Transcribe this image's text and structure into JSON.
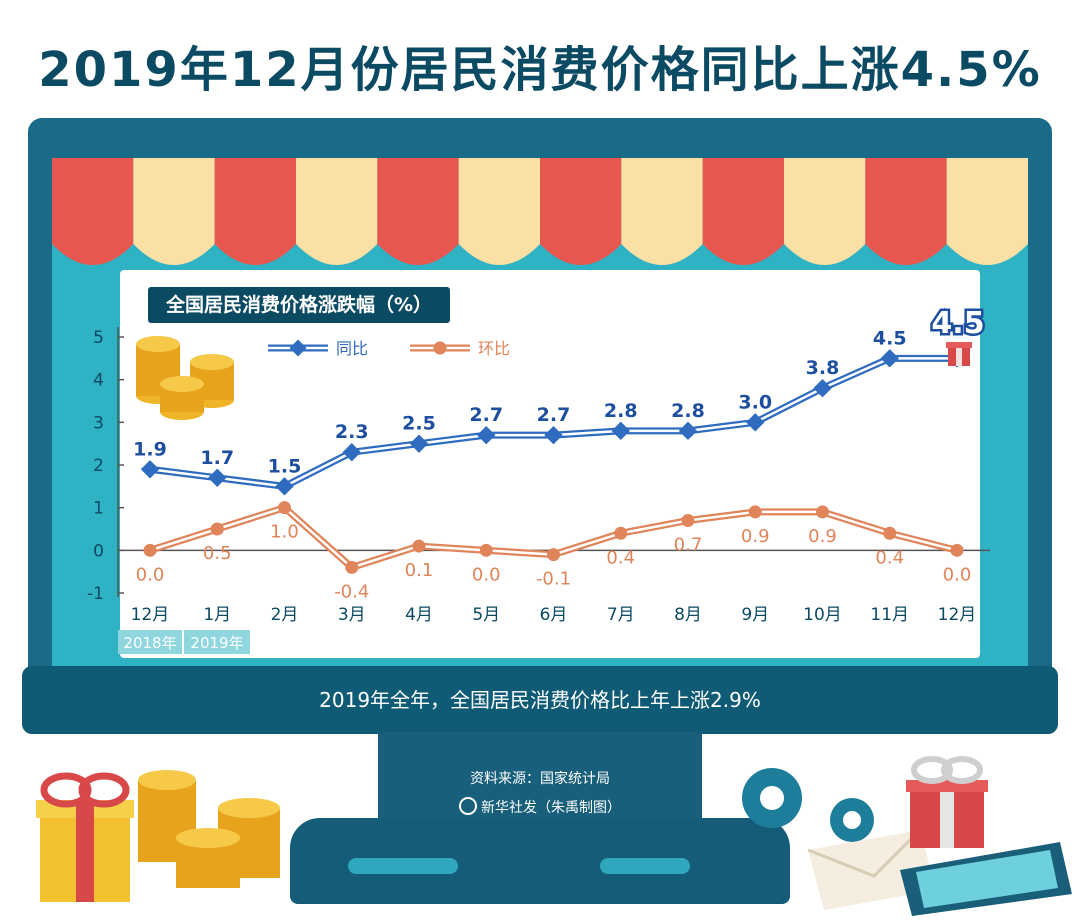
{
  "page_title": "2019年12月份居民消费价格同比上涨4.5%",
  "summary": "2019年全年，全国居民消费价格比上年上涨2.9%",
  "source": "资料来源：国家统计局",
  "credit": "新华社发（朱禹制图）",
  "badge": "4.5",
  "year_labels": [
    "2018年",
    "2019年"
  ],
  "colors": {
    "yoy": "#2f6cc0",
    "mom": "#e0845a",
    "title": "#0b4a63"
  },
  "chart_data": {
    "type": "line",
    "title": "全国居民消费价格涨跌幅（%）",
    "categories": [
      "12月",
      "1月",
      "2月",
      "3月",
      "4月",
      "5月",
      "6月",
      "7月",
      "8月",
      "9月",
      "10月",
      "11月",
      "12月"
    ],
    "ylim": [
      -1,
      5
    ],
    "yticks": [
      "5",
      "4",
      "3",
      "2",
      "1",
      "0",
      "-1"
    ],
    "grid": false,
    "legend": "top-left",
    "series": [
      {
        "name": "同比",
        "values": [
          1.9,
          1.7,
          1.5,
          2.3,
          2.5,
          2.7,
          2.7,
          2.8,
          2.8,
          3.0,
          3.8,
          4.5,
          4.5
        ],
        "labels": [
          "1.9",
          "1.7",
          "1.5",
          "2.3",
          "2.5",
          "2.7",
          "2.7",
          "2.8",
          "2.8",
          "3.0",
          "3.8",
          "4.5",
          ""
        ]
      },
      {
        "name": "环比",
        "values": [
          0.0,
          0.5,
          1.0,
          -0.4,
          0.1,
          0.0,
          -0.1,
          0.4,
          0.7,
          0.9,
          0.9,
          0.4,
          0.0
        ],
        "labels": [
          "0.0",
          "0.5",
          "1.0",
          "-0.4",
          "0.1",
          "0.0",
          "-0.1",
          "0.4",
          "0.7",
          "0.9",
          "0.9",
          "0.4",
          "0.0"
        ]
      }
    ]
  }
}
